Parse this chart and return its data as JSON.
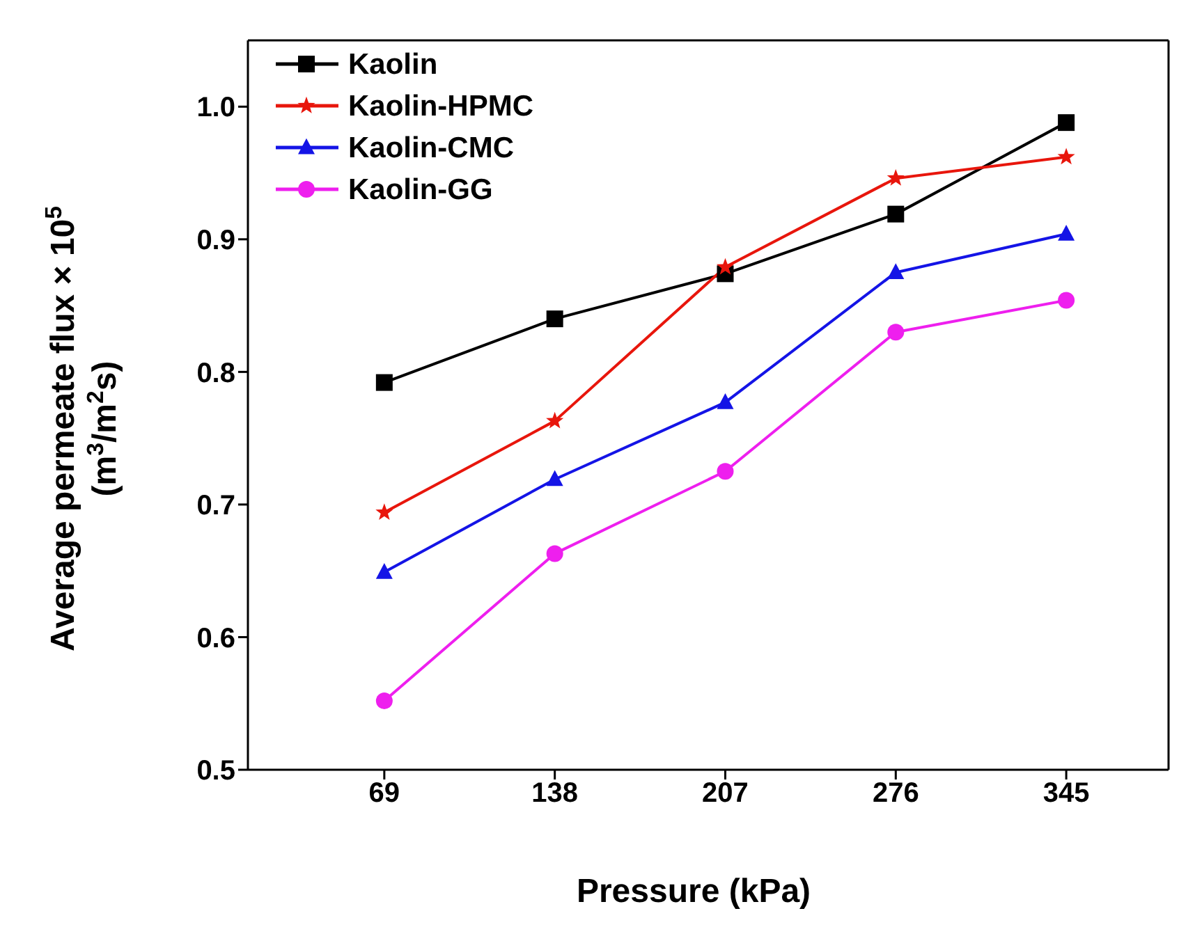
{
  "chart_data": {
    "type": "line",
    "xlabel": "Pressure (kPa)",
    "ylabel": "Average permeate flux × 10$^{5}$\n(m$^{3}$/m$^{2}$s)",
    "categories": [
      "69",
      "138",
      "207",
      "276",
      "345"
    ],
    "ylim": [
      0.5,
      1.05
    ],
    "yticks": [
      {
        "value": 0.5,
        "label": "0.5"
      },
      {
        "value": 0.6,
        "label": "0.6"
      },
      {
        "value": 0.7,
        "label": "0.7"
      },
      {
        "value": 0.8,
        "label": "0.8"
      },
      {
        "value": 0.9,
        "label": "0.9"
      },
      {
        "value": 1,
        "label": "1.0"
      }
    ],
    "grid": false,
    "legend": "top left",
    "series": [
      {
        "name": "Kaolin",
        "color": "#000000",
        "marker": "square",
        "values": [
          0.792,
          0.84,
          0.874,
          0.919,
          0.988
        ]
      },
      {
        "name": "Kaolin-HPMC",
        "color": "#e8160c",
        "marker": "star",
        "values": [
          0.694,
          0.763,
          0.879,
          0.946,
          0.962
        ]
      },
      {
        "name": "Kaolin-CMC",
        "color": "#1414e6",
        "marker": "triangle",
        "values": [
          0.649,
          0.719,
          0.777,
          0.875,
          0.904
        ]
      },
      {
        "name": "Kaolin-GG",
        "color": "#ee1fee",
        "marker": "circle",
        "values": [
          0.552,
          0.663,
          0.725,
          0.83,
          0.854
        ]
      }
    ]
  }
}
